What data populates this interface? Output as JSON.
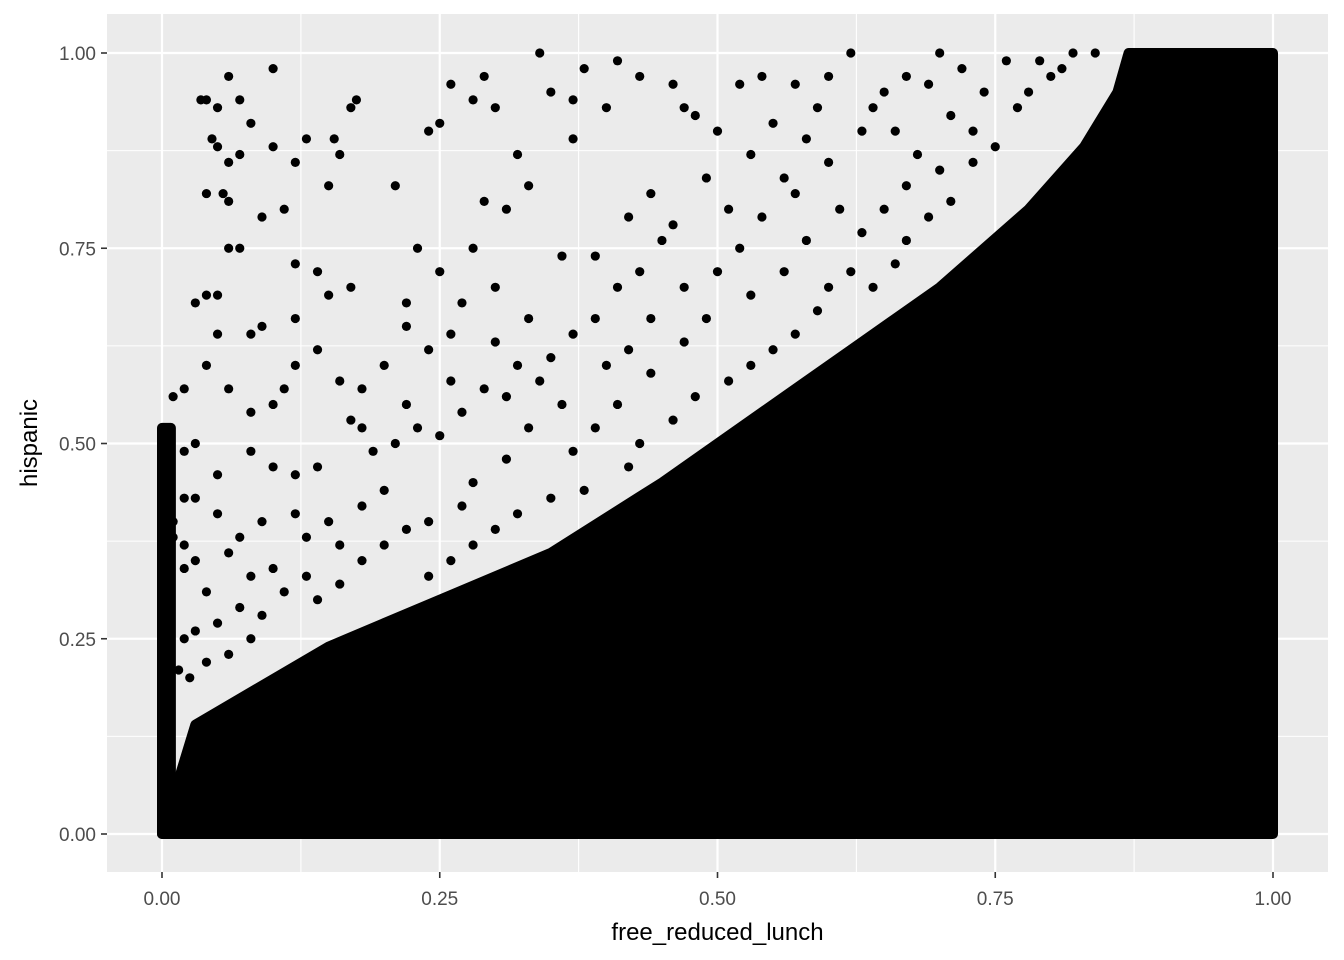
{
  "chart_data": {
    "type": "scatter",
    "title": "",
    "xlabel": "free_reduced_lunch",
    "ylabel": "hispanic",
    "xlim": [
      -0.05,
      1.05
    ],
    "ylim": [
      -0.05,
      1.05
    ],
    "x_ticks": [
      0,
      0.25,
      0.5,
      0.75,
      1
    ],
    "y_ticks": [
      0,
      0.25,
      0.5,
      0.75,
      1
    ],
    "x_tick_labels": [
      "0.00",
      "0.25",
      "0.50",
      "0.75",
      "1.00"
    ],
    "y_tick_labels": [
      "0.00",
      "0.25",
      "0.50",
      "0.75",
      "1.00"
    ],
    "grid": true,
    "legend": "none",
    "colors": {
      "panel": "#ebebeb",
      "grid": "#ffffff",
      "points": "#000000"
    },
    "series": [
      {
        "dense_regions": [
          {
            "polygon": [
              [
                0,
                0
              ],
              [
                0.03,
                0.14
              ],
              [
                0.15,
                0.24
              ],
              [
                0.25,
                0.3
              ],
              [
                0.35,
                0.36
              ],
              [
                0.45,
                0.45
              ],
              [
                0.55,
                0.55
              ],
              [
                0.62,
                0.62
              ],
              [
                0.7,
                0.7
              ],
              [
                0.78,
                0.8
              ],
              [
                0.83,
                0.88
              ],
              [
                0.86,
                0.95
              ],
              [
                0.87,
                1.0
              ],
              [
                1.0,
                1.0
              ],
              [
                1.0,
                0
              ]
            ]
          },
          {
            "polygon": [
              [
                0,
                0
              ],
              [
                0.008,
                0
              ],
              [
                0.008,
                0.52
              ],
              [
                0,
                0.52
              ]
            ]
          }
        ],
        "scattered_points": [
          [
            0.1,
            0.98
          ],
          [
            0.06,
            0.97
          ],
          [
            0.05,
            0.93
          ],
          [
            0.07,
            0.94
          ],
          [
            0.04,
            0.94
          ],
          [
            0.1,
            0.88
          ],
          [
            0.13,
            0.89
          ],
          [
            0.155,
            0.89
          ],
          [
            0.16,
            0.87
          ],
          [
            0.17,
            0.93
          ],
          [
            0.175,
            0.94
          ],
          [
            0.035,
            0.94
          ],
          [
            0.045,
            0.89
          ],
          [
            0.05,
            0.88
          ],
          [
            0.06,
            0.86
          ],
          [
            0.07,
            0.87
          ],
          [
            0.08,
            0.91
          ],
          [
            0.12,
            0.86
          ],
          [
            0.15,
            0.83
          ],
          [
            0.11,
            0.8
          ],
          [
            0.09,
            0.79
          ],
          [
            0.06,
            0.81
          ],
          [
            0.04,
            0.82
          ],
          [
            0.055,
            0.82
          ],
          [
            0.07,
            0.75
          ],
          [
            0.06,
            0.75
          ],
          [
            0.21,
            0.83
          ],
          [
            0.12,
            0.73
          ],
          [
            0.14,
            0.72
          ],
          [
            0.03,
            0.68
          ],
          [
            0.04,
            0.69
          ],
          [
            0.05,
            0.69
          ],
          [
            0.08,
            0.64
          ],
          [
            0.05,
            0.64
          ],
          [
            0.09,
            0.65
          ],
          [
            0.15,
            0.69
          ],
          [
            0.17,
            0.7
          ],
          [
            0.12,
            0.66
          ],
          [
            0.22,
            0.68
          ],
          [
            0.25,
            0.72
          ],
          [
            0.23,
            0.75
          ],
          [
            0.24,
            0.9
          ],
          [
            0.25,
            0.91
          ],
          [
            0.28,
            0.94
          ],
          [
            0.29,
            0.97
          ],
          [
            0.26,
            0.96
          ],
          [
            0.34,
            1.0
          ],
          [
            0.3,
            0.93
          ],
          [
            0.32,
            0.87
          ],
          [
            0.33,
            0.83
          ],
          [
            0.37,
            0.89
          ],
          [
            0.38,
            0.98
          ],
          [
            0.4,
            0.93
          ],
          [
            0.41,
            0.99
          ],
          [
            0.43,
            0.97
          ],
          [
            0.46,
            0.96
          ],
          [
            0.47,
            0.93
          ],
          [
            0.44,
            0.82
          ],
          [
            0.42,
            0.79
          ],
          [
            0.39,
            0.74
          ],
          [
            0.36,
            0.74
          ],
          [
            0.35,
            0.95
          ],
          [
            0.37,
            0.94
          ],
          [
            0.31,
            0.8
          ],
          [
            0.29,
            0.81
          ],
          [
            0.28,
            0.75
          ],
          [
            0.3,
            0.7
          ],
          [
            0.27,
            0.68
          ],
          [
            0.3,
            0.63
          ],
          [
            0.33,
            0.66
          ],
          [
            0.32,
            0.6
          ],
          [
            0.26,
            0.64
          ],
          [
            0.24,
            0.62
          ],
          [
            0.22,
            0.65
          ],
          [
            0.2,
            0.6
          ],
          [
            0.18,
            0.57
          ],
          [
            0.16,
            0.58
          ],
          [
            0.14,
            0.62
          ],
          [
            0.12,
            0.6
          ],
          [
            0.11,
            0.57
          ],
          [
            0.1,
            0.55
          ],
          [
            0.08,
            0.54
          ],
          [
            0.06,
            0.57
          ],
          [
            0.04,
            0.6
          ],
          [
            0.02,
            0.49
          ],
          [
            0.01,
            0.56
          ],
          [
            0.02,
            0.57
          ],
          [
            0.03,
            0.5
          ],
          [
            0.05,
            0.46
          ],
          [
            0.08,
            0.49
          ],
          [
            0.1,
            0.47
          ],
          [
            0.12,
            0.46
          ],
          [
            0.14,
            0.47
          ],
          [
            0.17,
            0.53
          ],
          [
            0.19,
            0.49
          ],
          [
            0.21,
            0.5
          ],
          [
            0.23,
            0.52
          ],
          [
            0.25,
            0.51
          ],
          [
            0.27,
            0.54
          ],
          [
            0.29,
            0.57
          ],
          [
            0.31,
            0.56
          ],
          [
            0.26,
            0.58
          ],
          [
            0.22,
            0.55
          ],
          [
            0.18,
            0.52
          ],
          [
            0.12,
            0.41
          ],
          [
            0.09,
            0.4
          ],
          [
            0.07,
            0.38
          ],
          [
            0.05,
            0.41
          ],
          [
            0.03,
            0.43
          ],
          [
            0.02,
            0.37
          ],
          [
            0.01,
            0.4
          ],
          [
            0.03,
            0.35
          ],
          [
            0.06,
            0.36
          ],
          [
            0.08,
            0.33
          ],
          [
            0.1,
            0.34
          ],
          [
            0.13,
            0.38
          ],
          [
            0.15,
            0.4
          ],
          [
            0.16,
            0.37
          ],
          [
            0.18,
            0.42
          ],
          [
            0.2,
            0.44
          ],
          [
            0.02,
            0.34
          ],
          [
            0.04,
            0.31
          ],
          [
            0.07,
            0.29
          ],
          [
            0.09,
            0.28
          ],
          [
            0.11,
            0.31
          ],
          [
            0.13,
            0.33
          ],
          [
            0.05,
            0.27
          ],
          [
            0.03,
            0.26
          ],
          [
            0.02,
            0.25
          ],
          [
            0.04,
            0.22
          ],
          [
            0.06,
            0.23
          ],
          [
            0.08,
            0.25
          ],
          [
            0.015,
            0.21
          ],
          [
            0.025,
            0.2
          ],
          [
            0.02,
            0.43
          ],
          [
            0.01,
            0.38
          ],
          [
            0.48,
            0.92
          ],
          [
            0.5,
            0.9
          ],
          [
            0.52,
            0.96
          ],
          [
            0.54,
            0.97
          ],
          [
            0.57,
            0.96
          ],
          [
            0.6,
            0.97
          ],
          [
            0.62,
            1.0
          ],
          [
            0.59,
            0.93
          ],
          [
            0.55,
            0.91
          ],
          [
            0.53,
            0.87
          ],
          [
            0.56,
            0.84
          ],
          [
            0.51,
            0.8
          ],
          [
            0.49,
            0.84
          ],
          [
            0.46,
            0.78
          ],
          [
            0.45,
            0.76
          ],
          [
            0.43,
            0.72
          ],
          [
            0.41,
            0.7
          ],
          [
            0.39,
            0.66
          ],
          [
            0.37,
            0.64
          ],
          [
            0.35,
            0.61
          ],
          [
            0.34,
            0.58
          ],
          [
            0.36,
            0.55
          ],
          [
            0.4,
            0.6
          ],
          [
            0.42,
            0.62
          ],
          [
            0.44,
            0.66
          ],
          [
            0.47,
            0.7
          ],
          [
            0.5,
            0.72
          ],
          [
            0.52,
            0.75
          ],
          [
            0.54,
            0.79
          ],
          [
            0.57,
            0.82
          ],
          [
            0.6,
            0.86
          ],
          [
            0.63,
            0.9
          ],
          [
            0.65,
            0.95
          ],
          [
            0.67,
            0.97
          ],
          [
            0.64,
            0.93
          ],
          [
            0.58,
            0.89
          ],
          [
            0.61,
            0.8
          ],
          [
            0.58,
            0.76
          ],
          [
            0.56,
            0.72
          ],
          [
            0.53,
            0.69
          ],
          [
            0.49,
            0.66
          ],
          [
            0.47,
            0.63
          ],
          [
            0.44,
            0.59
          ],
          [
            0.41,
            0.55
          ],
          [
            0.39,
            0.52
          ],
          [
            0.37,
            0.49
          ],
          [
            0.33,
            0.52
          ],
          [
            0.31,
            0.48
          ],
          [
            0.28,
            0.45
          ],
          [
            0.27,
            0.42
          ],
          [
            0.24,
            0.4
          ],
          [
            0.22,
            0.39
          ],
          [
            0.2,
            0.37
          ],
          [
            0.18,
            0.35
          ],
          [
            0.16,
            0.32
          ],
          [
            0.14,
            0.3
          ],
          [
            0.7,
            1.0
          ],
          [
            0.72,
            0.98
          ],
          [
            0.69,
            0.96
          ],
          [
            0.66,
            0.9
          ],
          [
            0.68,
            0.87
          ],
          [
            0.71,
            0.92
          ],
          [
            0.74,
            0.95
          ],
          [
            0.76,
            0.99
          ],
          [
            0.73,
            0.9
          ],
          [
            0.7,
            0.85
          ],
          [
            0.67,
            0.83
          ],
          [
            0.65,
            0.8
          ],
          [
            0.63,
            0.77
          ],
          [
            0.62,
            0.72
          ],
          [
            0.6,
            0.7
          ],
          [
            0.59,
            0.67
          ],
          [
            0.57,
            0.64
          ],
          [
            0.55,
            0.62
          ],
          [
            0.53,
            0.6
          ],
          [
            0.51,
            0.58
          ],
          [
            0.48,
            0.56
          ],
          [
            0.46,
            0.53
          ],
          [
            0.43,
            0.5
          ],
          [
            0.42,
            0.47
          ],
          [
            0.38,
            0.44
          ],
          [
            0.35,
            0.43
          ],
          [
            0.32,
            0.41
          ],
          [
            0.3,
            0.39
          ],
          [
            0.28,
            0.37
          ],
          [
            0.26,
            0.35
          ],
          [
            0.24,
            0.33
          ],
          [
            0.79,
            0.99
          ],
          [
            0.8,
            0.97
          ],
          [
            0.78,
            0.95
          ],
          [
            0.77,
            0.93
          ],
          [
            0.75,
            0.88
          ],
          [
            0.73,
            0.86
          ],
          [
            0.71,
            0.81
          ],
          [
            0.69,
            0.79
          ],
          [
            0.67,
            0.76
          ],
          [
            0.66,
            0.73
          ],
          [
            0.64,
            0.7
          ],
          [
            0.82,
            1.0
          ],
          [
            0.81,
            0.98
          ],
          [
            0.84,
            1.0
          ]
        ]
      }
    ]
  }
}
